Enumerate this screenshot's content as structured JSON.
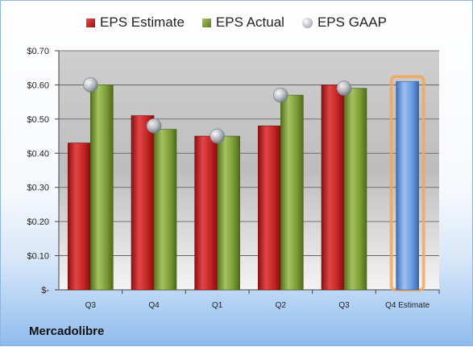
{
  "company": "Mercadolibre",
  "colors": {
    "estimate": "#c62828",
    "actual": "#7a9a35",
    "gaap": "#b0b6be",
    "future_estimate": "#6a9be0",
    "highlight": "#f2a65a"
  },
  "chart_data": {
    "type": "bar",
    "categories": [
      "Q3",
      "Q4",
      "Q1",
      "Q2",
      "Q3",
      "Q4 Estimate"
    ],
    "series": [
      {
        "name": "EPS Estimate",
        "values": [
          0.43,
          0.51,
          0.45,
          0.48,
          0.6,
          null
        ]
      },
      {
        "name": "EPS Actual",
        "values": [
          0.6,
          0.47,
          0.45,
          0.57,
          0.59,
          0.61
        ]
      },
      {
        "name": "EPS GAAP",
        "values": [
          0.6,
          0.48,
          0.45,
          0.57,
          0.59,
          null
        ]
      }
    ],
    "y_ticks": [
      "$-",
      "$0.10",
      "$0.20",
      "$0.30",
      "$0.40",
      "$0.50",
      "$0.60",
      "$0.70"
    ],
    "ylim": [
      0,
      0.7
    ],
    "grid": true,
    "legend_position": "top"
  }
}
